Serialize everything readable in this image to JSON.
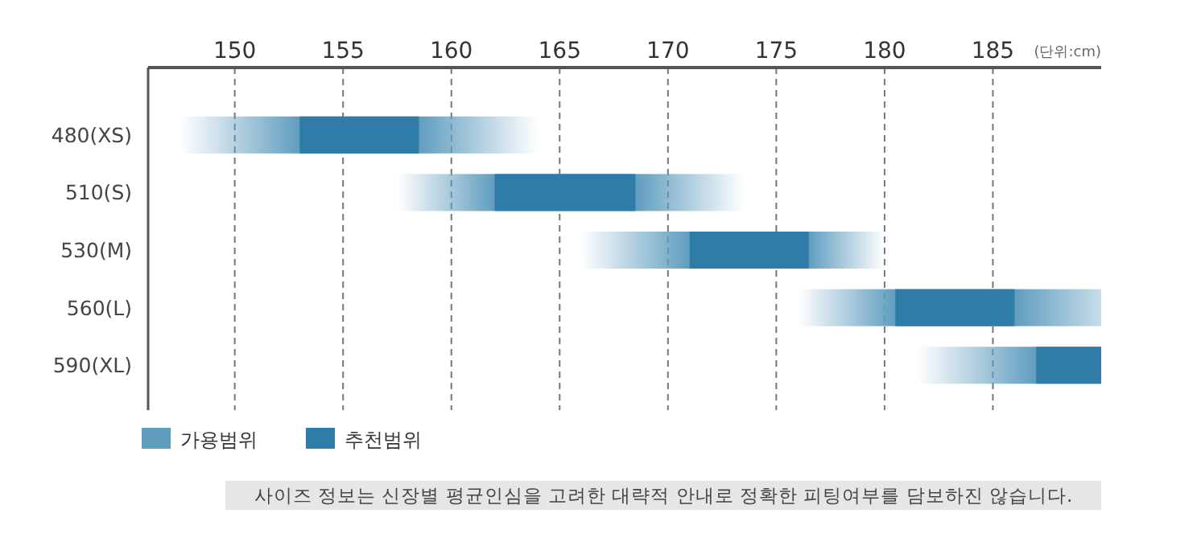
{
  "chart_data": {
    "type": "bar",
    "orientation": "horizontal",
    "categories": [
      "480(XS)",
      "510(S)",
      "530(M)",
      "560(L)",
      "590(XL)"
    ],
    "series": [
      {
        "name": "가용범위",
        "color": "#5f9dbf",
        "base": [
          147.5,
          157.5,
          166,
          176,
          181.5
        ],
        "values": [
          16.5,
          16,
          14,
          14,
          8.5
        ]
      },
      {
        "name": "추천범위",
        "color": "#2f7ca8",
        "base": [
          153,
          162,
          171,
          180.5,
          187
        ],
        "values": [
          5.5,
          6.5,
          5.5,
          5.5,
          3
        ]
      }
    ],
    "xlim": [
      146,
      190
    ],
    "xticks": [
      150,
      155,
      160,
      165,
      170,
      175,
      180,
      185
    ],
    "grid": "x",
    "legend": "bottom left",
    "annotations": [
      "(단위:cm)",
      "사이즈 정보는 신장별 평균인심을 고려한 대략적 안내로 정확한 피팅여부를 담보하진 않습니다."
    ]
  }
}
